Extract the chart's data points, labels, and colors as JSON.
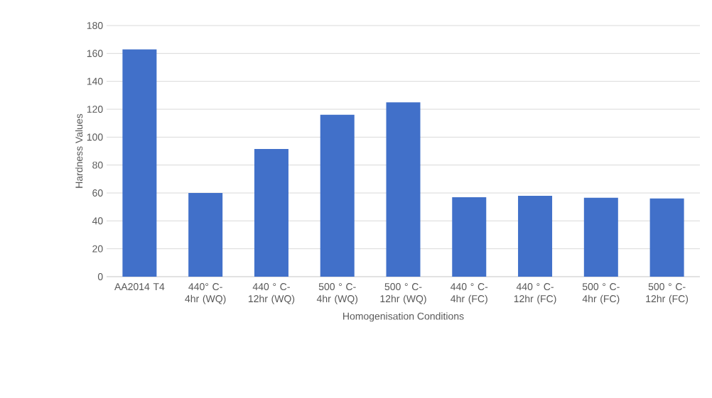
{
  "chart_data": {
    "type": "bar",
    "xlabel": "Homogenisation Conditions",
    "ylabel": "Hardness Values",
    "categories": [
      "AA2014 T4",
      "440° C-4hr (WQ)",
      "440 ° C-12hr (WQ)",
      "500 ° C-4hr (WQ)",
      "500 ° C-12hr (WQ)",
      "440 ° C-4hr (FC)",
      "440 ° C-12hr (FC)",
      "500 ° C-4hr (FC)",
      "500 ° C-12hr (FC)"
    ],
    "values": [
      163,
      60,
      91.5,
      116,
      125,
      57,
      58,
      56.5,
      56
    ],
    "color": "#4170c9",
    "ylim": [
      0,
      180
    ],
    "yticks": [
      0,
      20,
      40,
      60,
      80,
      100,
      120,
      140,
      160,
      180
    ],
    "grid": "y"
  }
}
